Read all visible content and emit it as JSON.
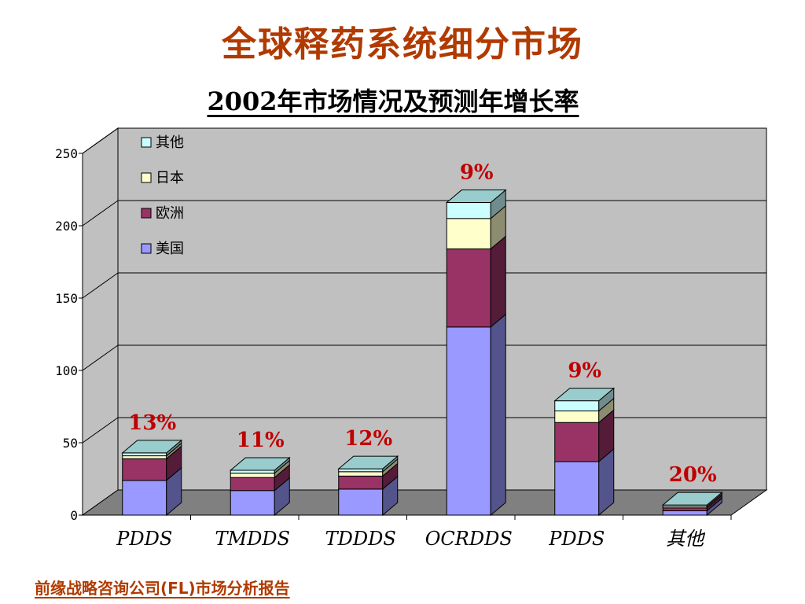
{
  "title": "全球释药系统细分市场",
  "subtitle": "2002年市场情况及预测年增长率",
  "footer": "前缘战略咨询公司(FL)市场分析报告",
  "colors": {
    "美国": "#9999ff",
    "欧洲": "#993366",
    "日本": "#ffffcc",
    "其他": "#ccffff",
    "growth_label": "#c00000",
    "back_wall": "#c0c0c0",
    "floor": "#808080"
  },
  "chart_data": {
    "type": "bar",
    "stacked": true,
    "three_d": true,
    "categories": [
      "PDDS",
      "TMDDS",
      "TDDDS",
      "OCRDDS",
      "PDDS",
      "其他"
    ],
    "series": [
      {
        "name": "美国",
        "values": [
          24,
          17,
          18,
          130,
          37,
          3
        ]
      },
      {
        "name": "欧洲",
        "values": [
          15,
          9,
          9,
          54,
          27,
          2
        ]
      },
      {
        "name": "日本",
        "values": [
          2,
          3,
          3,
          21,
          8,
          1
        ]
      },
      {
        "name": "其他",
        "values": [
          2,
          2,
          2,
          11,
          7,
          1
        ]
      }
    ],
    "growth_rates": [
      "13%",
      "11%",
      "12%",
      "9%",
      "9%",
      "20%"
    ],
    "y_ticks": [
      "0",
      "50",
      "100",
      "150",
      "200",
      "250"
    ],
    "ylim": [
      0,
      250
    ],
    "legend": {
      "placement": "top-left",
      "order": [
        "其他",
        "日本",
        "欧洲",
        "美国"
      ]
    },
    "grid": true
  }
}
